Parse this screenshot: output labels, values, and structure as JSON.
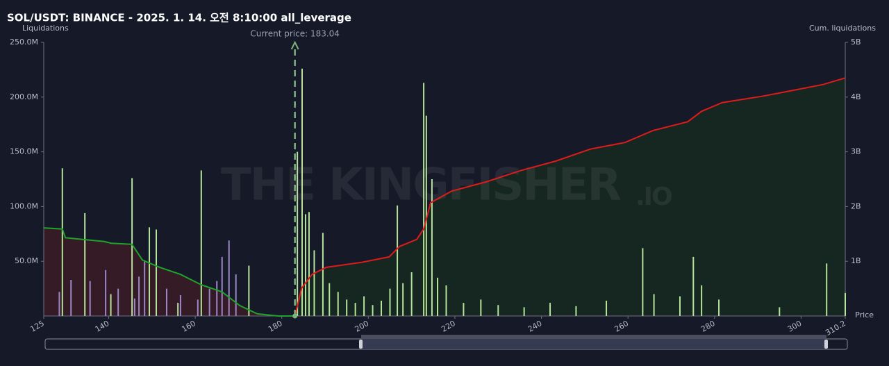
{
  "chart_data": {
    "type": "liquidation",
    "title": "SOL/USDT: BINANCE - 2025. 1. 14. 오전 8:10:00 all_leverage",
    "y_label": "Liquidations",
    "y2_label": "Cum. liquidations",
    "x_label": "Price",
    "watermark": [
      "THE KINGFISHER",
      ".IO"
    ],
    "current_price": 183.04,
    "current_price_label": "Current price: 183.04",
    "current_price_color": "#7fb27f",
    "xlim": [
      125,
      310.2
    ],
    "xticks": [
      125,
      140,
      160,
      180,
      200,
      220,
      240,
      260,
      280,
      300,
      310.2
    ],
    "ylim": [
      0,
      250000000
    ],
    "yticks": [
      {
        "value": 50000000,
        "label": "50.0M"
      },
      {
        "value": 100000000,
        "label": "100.0M"
      },
      {
        "value": 150000000,
        "label": "150.0M"
      },
      {
        "value": 200000000,
        "label": "200.0M"
      },
      {
        "value": 250000000,
        "label": "250.0M"
      }
    ],
    "y2lim": [
      0,
      5000000000
    ],
    "y2ticks": [
      {
        "value": 1000000000,
        "label": "1B"
      },
      {
        "value": 2000000000,
        "label": "2B"
      },
      {
        "value": 3000000000,
        "label": "3B"
      },
      {
        "value": 4000000000,
        "label": "4B"
      },
      {
        "value": 5000000000,
        "label": "5B"
      }
    ],
    "grid": false,
    "series": [
      {
        "kind": "bar",
        "color": "#9c86c9",
        "x": [
          128.6,
          131.3,
          135.7,
          139.3,
          142.2,
          146,
          147,
          148.3,
          153.4,
          156.6,
          160.6,
          163.3,
          165,
          166.2,
          167.8,
          169.4
        ],
        "values": [
          22000000,
          33000000,
          32000000,
          42000000,
          25000000,
          16000000,
          36000000,
          51000000,
          25000000,
          19000000,
          15000000,
          25000000,
          32000000,
          54000000,
          69000000,
          38000000
        ]
      },
      {
        "kind": "bar",
        "color": "#b5e39a",
        "x": [
          129.3,
          134.5,
          140.5,
          145.4,
          149.4,
          151,
          156,
          161.4,
          172.4,
          183.6,
          184.7,
          185.5,
          186.3,
          187.5,
          189.5,
          191,
          193,
          195,
          197,
          199,
          201,
          203,
          205,
          206.7,
          208,
          210,
          212.8,
          213.4,
          214.7,
          216,
          218,
          222,
          226,
          230,
          236,
          242,
          248,
          255,
          263.4,
          266,
          272,
          275.1,
          277,
          281,
          295,
          305.9,
          310.2
        ],
        "values": [
          135000000,
          94000000,
          20000000,
          126000000,
          81000000,
          79000000,
          12000000,
          133000000,
          46000000,
          150000000,
          226000000,
          93000000,
          95000000,
          60000000,
          76000000,
          30000000,
          22000000,
          15000000,
          12000000,
          18000000,
          10000000,
          14000000,
          25000000,
          101000000,
          30000000,
          40000000,
          213000000,
          183000000,
          125000000,
          35000000,
          28000000,
          12000000,
          15000000,
          10000000,
          8000000,
          12000000,
          9000000,
          14000000,
          62000000,
          20000000,
          18000000,
          54000000,
          28000000,
          15000000,
          8000000,
          48000000,
          21000000
        ]
      },
      {
        "kind": "cum",
        "axis": "y2",
        "color": "#1fa32a",
        "area_color": "#3a1c26",
        "x": [
          125,
          129.3,
          130,
          134,
          139,
          140.6,
          145.4,
          147.8,
          151.8,
          156.6,
          161.4,
          166.2,
          170.3,
          174.3,
          179.1,
          183.04
        ],
        "values": [
          1610000000,
          1590000000,
          1430000000,
          1400000000,
          1360000000,
          1330000000,
          1310000000,
          1020000000,
          890000000,
          760000000,
          570000000,
          440000000,
          190000000,
          40000000,
          0,
          0
        ]
      },
      {
        "kind": "cum",
        "axis": "y2",
        "color": "#e01b1b",
        "area_color": "#16291f",
        "x": [
          183.04,
          184.6,
          187,
          190.3,
          198.4,
          204.8,
          207.2,
          211.2,
          212.8,
          214.4,
          219.2,
          227.2,
          235.3,
          243.3,
          251.3,
          259.3,
          265.8,
          273.8,
          277,
          281.8,
          291.4,
          305.1,
          310.2
        ],
        "values": [
          0,
          510000000,
          760000000,
          890000000,
          980000000,
          1080000000,
          1270000000,
          1400000000,
          1590000000,
          2070000000,
          2280000000,
          2450000000,
          2660000000,
          2830000000,
          3050000000,
          3170000000,
          3390000000,
          3550000000,
          3740000000,
          3900000000,
          4020000000,
          4230000000,
          4350000000
        ]
      }
    ]
  }
}
